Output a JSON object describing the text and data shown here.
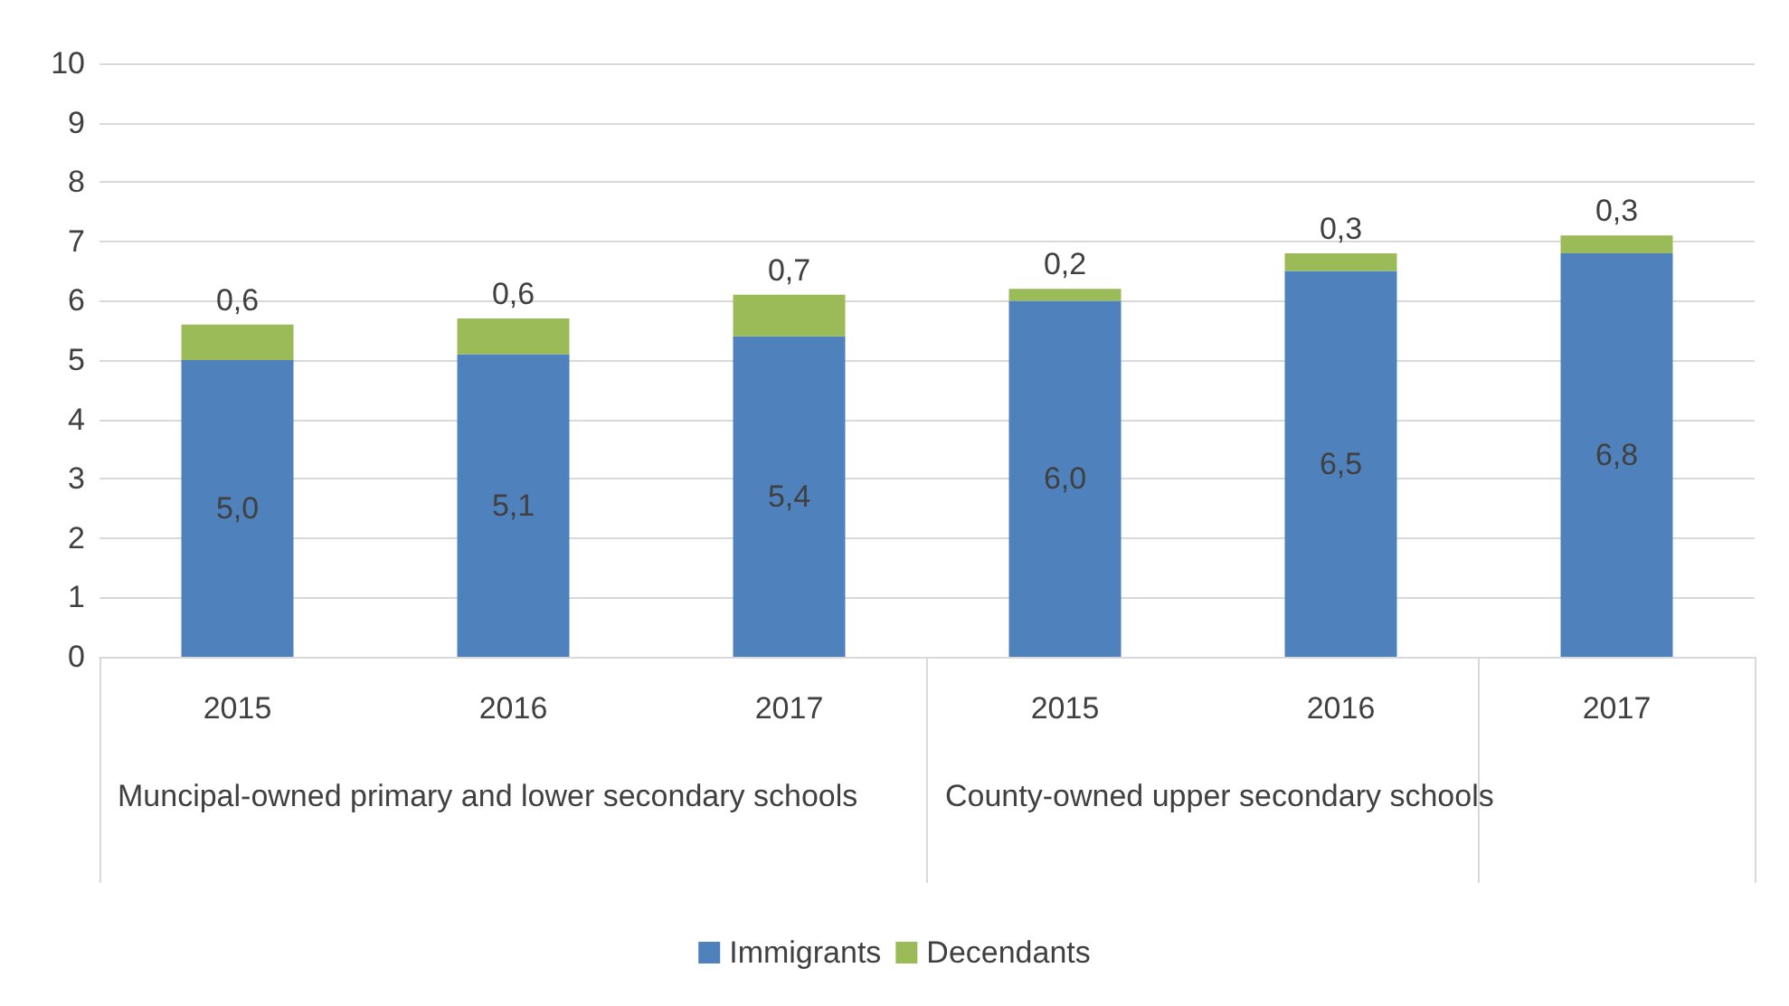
{
  "chart_data": {
    "type": "bar",
    "stacked": true,
    "categories": [
      "2015",
      "2016",
      "2017",
      "2015",
      "2016",
      "2017"
    ],
    "series": [
      {
        "name": "Immigrants",
        "color": "#4f81bd",
        "values": [
          5.0,
          5.1,
          5.4,
          6.0,
          6.5,
          6.8
        ],
        "value_labels": [
          "5,0",
          "5,1",
          "5,4",
          "6,0",
          "6,5",
          "6,8"
        ]
      },
      {
        "name": "Decendants",
        "color": "#9bbb59",
        "values": [
          0.6,
          0.6,
          0.7,
          0.2,
          0.3,
          0.3
        ],
        "value_labels": [
          "0,6",
          "0,6",
          "0,7",
          "0,2",
          "0,3",
          "0,3"
        ]
      }
    ],
    "annotations": [
      "Muncipal-owned primary and lower secondary schools",
      "County-owned upper secondary schools"
    ],
    "ylim": [
      0,
      10
    ],
    "yticks": [
      0,
      1,
      2,
      3,
      4,
      5,
      6,
      7,
      8,
      9,
      10
    ],
    "grid": "y",
    "legend": "bottom"
  }
}
